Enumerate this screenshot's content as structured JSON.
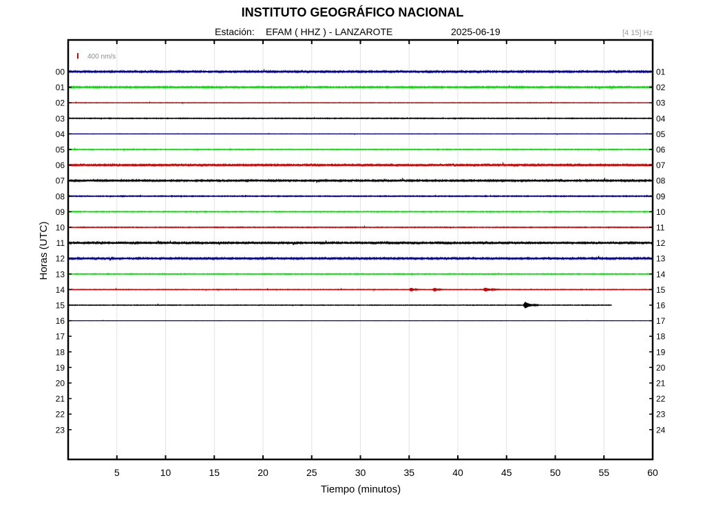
{
  "header": {
    "title": "INSTITUTO GEOGRÁFICO NACIONAL",
    "station_label": "Estación:",
    "station": "EFAM ( HHZ ) - LANZAROTE",
    "date": "2025-06-19",
    "filter": "[4 15] Hz"
  },
  "chart_data": {
    "type": "line",
    "title": "INSTITUTO GEOGRÁFICO NACIONAL",
    "xlabel": "Tiempo (minutos)",
    "ylabel": "Horas (UTC)",
    "xlim": [
      0,
      60
    ],
    "x_ticks": [
      5,
      10,
      15,
      20,
      25,
      30,
      35,
      40,
      45,
      50,
      55,
      60
    ],
    "y_ticks_left": [
      "00",
      "01",
      "02",
      "03",
      "04",
      "05",
      "06",
      "07",
      "08",
      "09",
      "10",
      "11",
      "12",
      "13",
      "14",
      "15",
      "16",
      "17",
      "18",
      "19",
      "20",
      "21",
      "22",
      "23"
    ],
    "y_ticks_right": [
      "01",
      "02",
      "03",
      "04",
      "05",
      "06",
      "07",
      "08",
      "09",
      "10",
      "11",
      "12",
      "13",
      "14",
      "15",
      "16",
      "17",
      "18",
      "19",
      "20",
      "21",
      "22",
      "23",
      "24"
    ],
    "scale_label": "400 nm/s",
    "scale_color": "#e00000",
    "grid": "vertical",
    "series": [
      {
        "hour": "00",
        "color": "#00008b",
        "noise": 1.2,
        "end": 60
      },
      {
        "hour": "01",
        "color": "#00dd00",
        "noise": 1.0,
        "end": 60
      },
      {
        "hour": "02",
        "color": "#cc0000",
        "noise": 0.4,
        "end": 60
      },
      {
        "hour": "03",
        "color": "#000000",
        "noise": 0.6,
        "end": 60
      },
      {
        "hour": "04",
        "color": "#00008b",
        "noise": 0.3,
        "end": 60
      },
      {
        "hour": "05",
        "color": "#00dd00",
        "noise": 0.6,
        "end": 60
      },
      {
        "hour": "06",
        "color": "#cc0000",
        "noise": 1.4,
        "end": 60
      },
      {
        "hour": "07",
        "color": "#000000",
        "noise": 1.4,
        "end": 60
      },
      {
        "hour": "08",
        "color": "#00008b",
        "noise": 0.7,
        "end": 60
      },
      {
        "hour": "09",
        "color": "#00dd00",
        "noise": 0.6,
        "end": 60
      },
      {
        "hour": "10",
        "color": "#cc0000",
        "noise": 0.6,
        "end": 60
      },
      {
        "hour": "11",
        "color": "#000000",
        "noise": 1.3,
        "end": 60
      },
      {
        "hour": "12",
        "color": "#00008b",
        "noise": 1.3,
        "end": 60
      },
      {
        "hour": "13",
        "color": "#00dd00",
        "noise": 0.6,
        "end": 60
      },
      {
        "hour": "14",
        "color": "#cc0000",
        "noise": 0.5,
        "end": 60,
        "events": [
          {
            "t": 35.2,
            "amp": 2.5,
            "dur": 0.9
          },
          {
            "t": 37.6,
            "amp": 2.5,
            "dur": 0.9
          },
          {
            "t": 42.8,
            "amp": 2.5,
            "dur": 1.5
          }
        ]
      },
      {
        "hour": "15",
        "color": "#000000",
        "noise": 0.5,
        "end": 55.8,
        "events": [
          {
            "t": 46.9,
            "amp": 4.5,
            "dur": 1.4
          }
        ]
      },
      {
        "hour": "16",
        "color": "#00008b",
        "noise": 0.2,
        "end": 60
      }
    ]
  }
}
